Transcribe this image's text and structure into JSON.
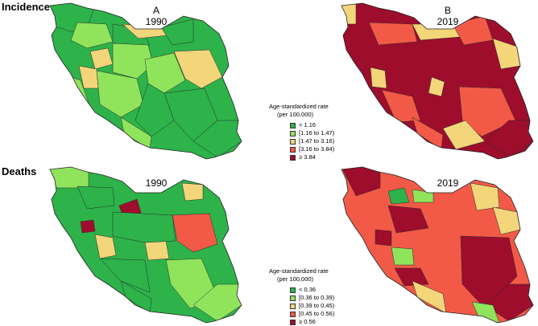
{
  "rows": {
    "incidence_label": "Incidence",
    "deaths_label": "Deaths"
  },
  "panels": {
    "a_letter": "A",
    "a_year": "1990",
    "b_letter": "B",
    "b_year": "2019",
    "c_year": "1990",
    "d_year": "2019"
  },
  "palette": {
    "dark_green": "#2db34a",
    "light_green": "#90e45c",
    "yellow": "#f3d57a",
    "red": "#f25a47",
    "dark_red": "#9e0d2c"
  },
  "legend_incidence": {
    "title_line1": "Age-standardized rate",
    "title_line2": "(per 100,000)",
    "items": [
      "< 1.16",
      "[1.16 to 1.47)",
      "[1.47 to 3.16)",
      "[3.16 to 3.84)",
      "≥ 3.84"
    ]
  },
  "legend_deaths": {
    "title_line1": "Age-standardized rate",
    "title_line2": "(per 100,000)",
    "items": [
      "< 0.36",
      "[0.36 to 0.39)",
      "[0.39 to 0.45)",
      "[0.45 to 0.56)",
      "≥ 0.56"
    ]
  }
}
